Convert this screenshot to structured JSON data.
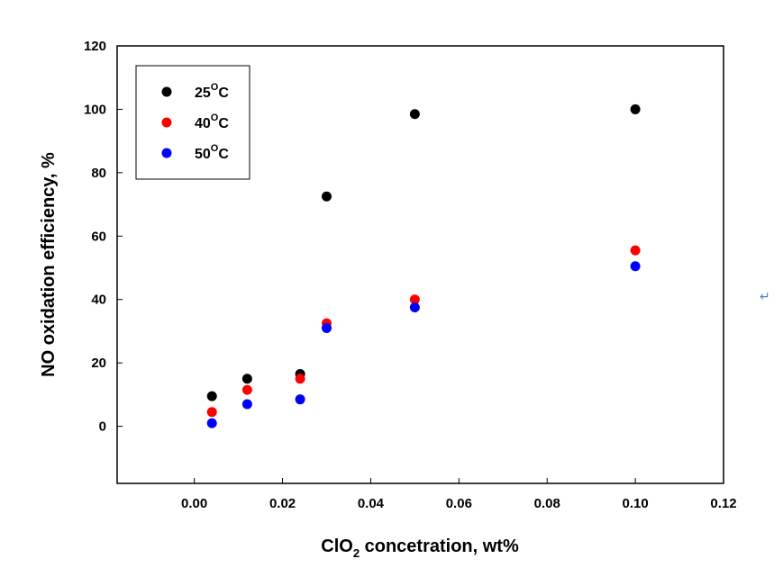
{
  "chart_data": {
    "type": "scatter",
    "xlabel": "ClO",
    "xlabel_sub": "2",
    "xlabel_rest": " concetration, wt%",
    "ylabel": "NO oxidation efficiency, %",
    "xlim": [
      -0.0175,
      0.12
    ],
    "ylim": [
      -18,
      120
    ],
    "xticks": [
      "0.00",
      "0.02",
      "0.04",
      "0.06",
      "0.08",
      "0.10",
      "0.12"
    ],
    "xtick_values": [
      0,
      0.02,
      0.04,
      0.06,
      0.08,
      0.1,
      0.12
    ],
    "yticks": [
      "0",
      "20",
      "40",
      "60",
      "80",
      "100",
      "120"
    ],
    "ytick_values": [
      0,
      20,
      40,
      60,
      80,
      100,
      120
    ],
    "legend_position": "top-left",
    "grid": false,
    "series": [
      {
        "name": "25",
        "unit": "C",
        "unit_sup": "O",
        "color": "#000000",
        "points": [
          [
            0.004,
            9.5
          ],
          [
            0.012,
            15
          ],
          [
            0.024,
            16.5
          ],
          [
            0.03,
            72.5
          ],
          [
            0.05,
            98.5
          ],
          [
            0.1,
            100
          ]
        ]
      },
      {
        "name": "40",
        "unit": "C",
        "unit_sup": "O",
        "color": "#ff0000",
        "points": [
          [
            0.004,
            4.5
          ],
          [
            0.012,
            11.5
          ],
          [
            0.024,
            15
          ],
          [
            0.03,
            32.5
          ],
          [
            0.05,
            40
          ],
          [
            0.1,
            55.5
          ]
        ]
      },
      {
        "name": "50",
        "unit": "C",
        "unit_sup": "O",
        "color": "#0000ff",
        "points": [
          [
            0.004,
            1
          ],
          [
            0.012,
            7
          ],
          [
            0.024,
            8.5
          ],
          [
            0.03,
            31
          ],
          [
            0.05,
            37.5
          ],
          [
            0.1,
            50.5
          ]
        ]
      }
    ]
  },
  "paragraph_mark": "↵"
}
